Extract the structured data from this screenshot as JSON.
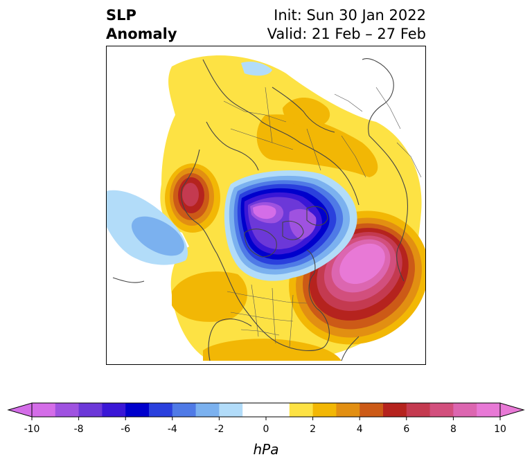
{
  "title": {
    "variable": "SLP",
    "subtitle": "Anomaly",
    "init": "Init: Sun 30 Jan 2022",
    "valid": "Valid: 21 Feb – 27 Feb"
  },
  "colorbar": {
    "unit": "hPa",
    "ticks": [
      "-10",
      "-8",
      "-6",
      "-4",
      "-2",
      "0",
      "2",
      "4",
      "6",
      "8",
      "10"
    ],
    "colors": [
      "#d46de8",
      "#9f52e0",
      "#6c38d8",
      "#3a17d6",
      "#0000cc",
      "#2a40dd",
      "#4f7ae6",
      "#7bb1ef",
      "#b2dcf9",
      "#ffffff",
      "#ffffff",
      "#fde244",
      "#f2b705",
      "#e28f12",
      "#cc5a17",
      "#b5231e",
      "#c43a50",
      "#d24f7d",
      "#dc66b0",
      "#e879d6"
    ],
    "extend_low_color": "#d46de8",
    "extend_high_color": "#e879d6"
  },
  "map": {
    "projection": "north-polar-stereographic",
    "features": [
      {
        "name": "negative-anomaly-arctic-canada",
        "min_value": -10
      },
      {
        "name": "positive-anomaly-north-atlantic",
        "max_value": 10
      },
      {
        "name": "positive-anomaly-bering-sea",
        "max_value": 7
      },
      {
        "name": "negative-anomaly-north-pacific",
        "min_value": -3
      }
    ]
  }
}
